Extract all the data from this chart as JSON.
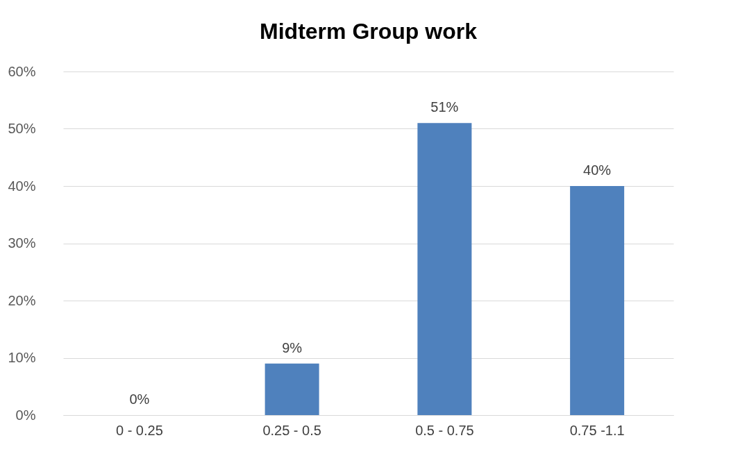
{
  "chart_data": {
    "type": "bar",
    "title": "Midterm Group work",
    "categories": [
      "0 - 0.25",
      "0.25 - 0.5",
      "0.5 - 0.75",
      "0.75 -1.1"
    ],
    "values": [
      0,
      9,
      51,
      40
    ],
    "value_labels": [
      "0%",
      "9%",
      "51%",
      "40%"
    ],
    "color": "#4f81bd",
    "ylim": [
      0,
      60
    ],
    "yticks": [
      {
        "value": 0,
        "label": "0%"
      },
      {
        "value": 10,
        "label": "10%"
      },
      {
        "value": 20,
        "label": "20%"
      },
      {
        "value": 30,
        "label": "30%"
      },
      {
        "value": 40,
        "label": "40%"
      },
      {
        "value": 50,
        "label": "50%"
      },
      {
        "value": 60,
        "label": "60%"
      }
    ],
    "grid": "y"
  }
}
